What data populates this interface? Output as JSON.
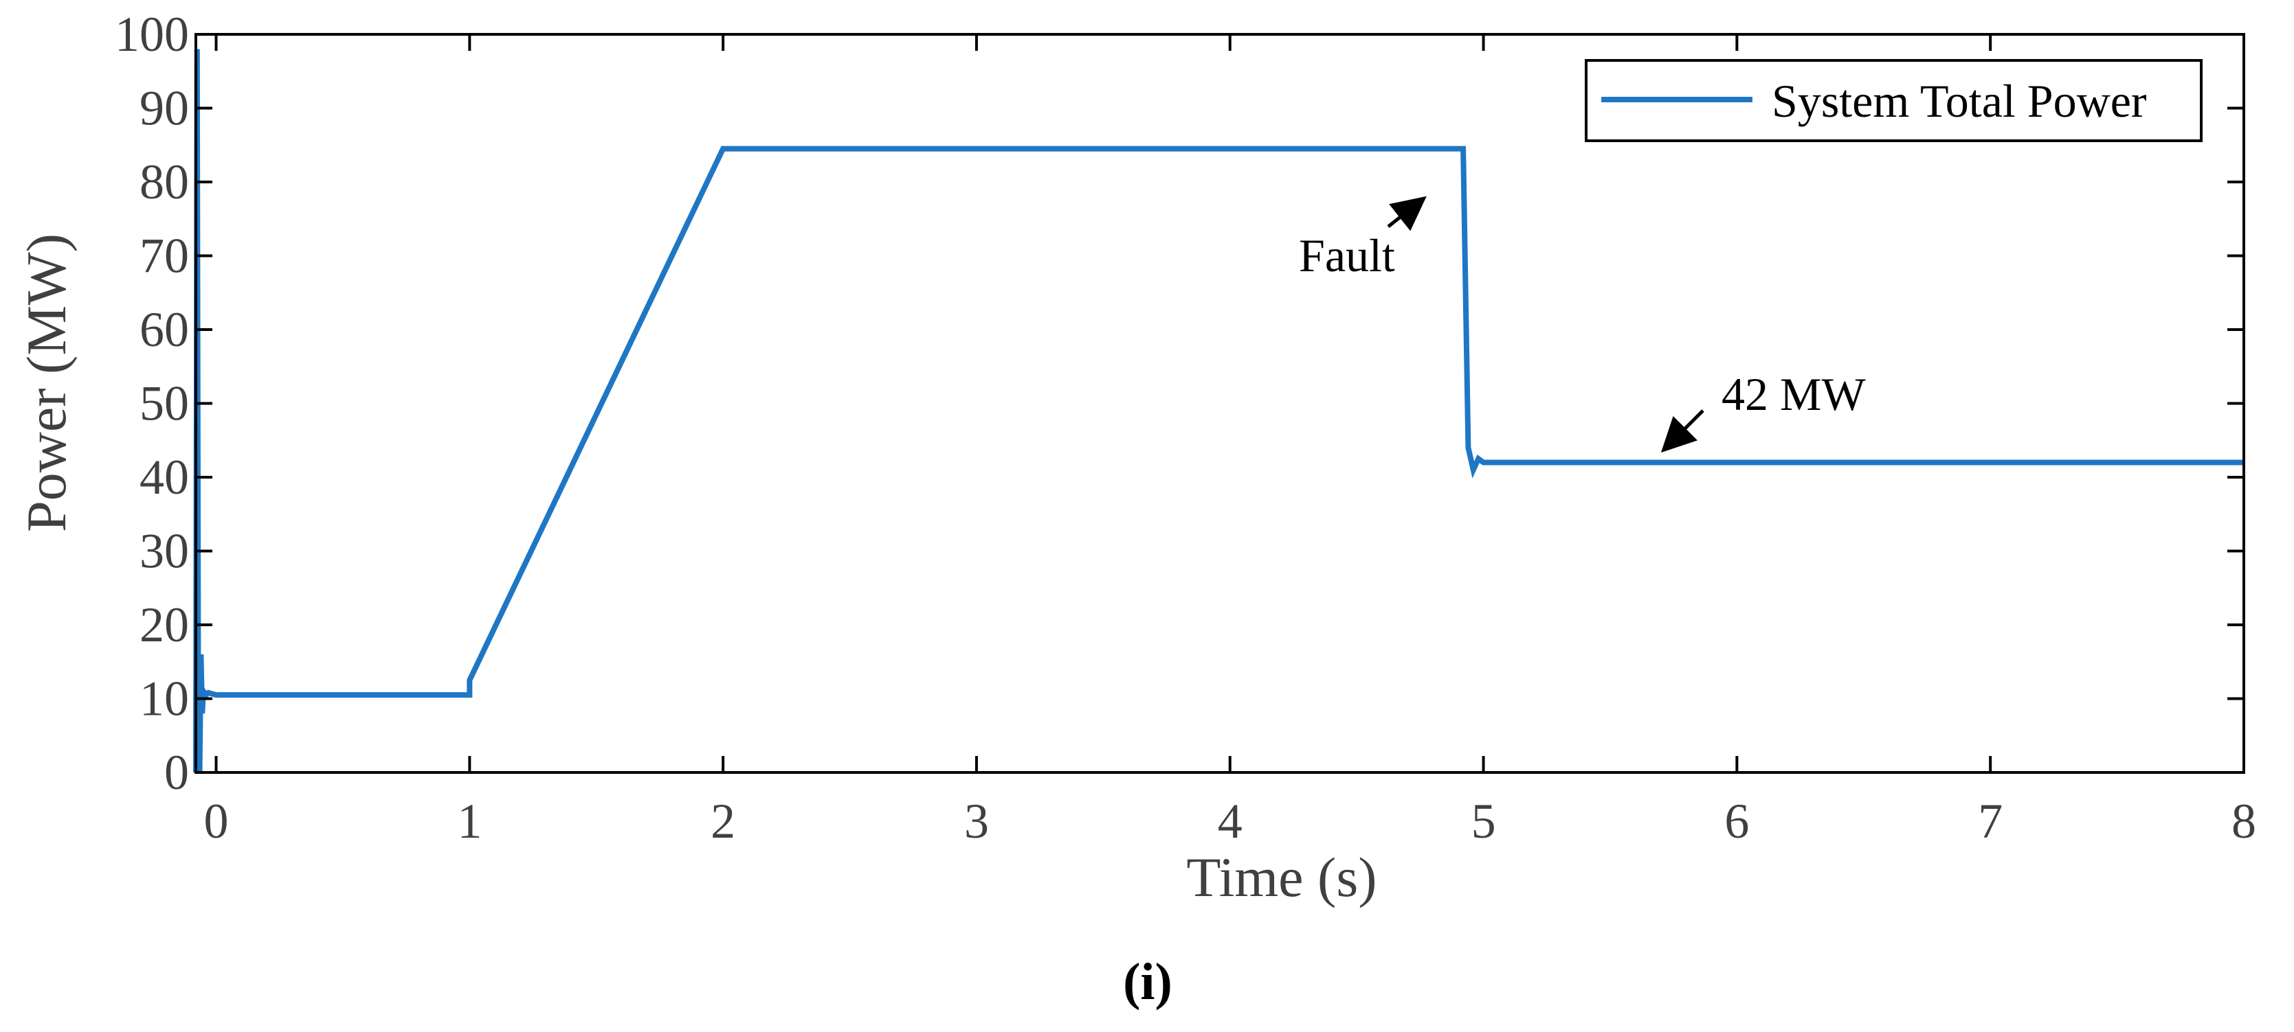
{
  "chart_data": {
    "type": "line",
    "title": "",
    "xlabel": "Time (s)",
    "ylabel": "Power (MW)",
    "xlim": [
      -0.08,
      8
    ],
    "ylim": [
      0,
      100
    ],
    "xticks": [
      0,
      1,
      2,
      3,
      4,
      5,
      6,
      7,
      8
    ],
    "yticks": [
      0,
      10,
      20,
      30,
      40,
      50,
      60,
      70,
      80,
      90,
      100
    ],
    "xtick_labels": [
      "0",
      "1",
      "2",
      "3",
      "4",
      "5",
      "6",
      "7",
      "8"
    ],
    "ytick_labels": [
      "0",
      "10",
      "20",
      "30",
      "40",
      "50",
      "60",
      "70",
      "80",
      "90",
      "100"
    ],
    "grid": false,
    "legend": {
      "position": "top-right",
      "entries": [
        "System Total Power"
      ]
    },
    "series": [
      {
        "name": "System Total Power",
        "color": "#1f77c4",
        "x": [
          -0.08,
          -0.075,
          -0.07,
          -0.065,
          -0.06,
          -0.055,
          -0.05,
          -0.04,
          -0.03,
          0.0,
          0.5,
          0.9,
          1.0,
          1.0,
          2.0,
          3.0,
          4.0,
          4.9,
          4.92,
          4.94,
          4.96,
          4.98,
          5.0,
          5.5,
          6.0,
          7.0,
          8.0
        ],
        "y": [
          0,
          98,
          2,
          0,
          16,
          8,
          11,
          10.5,
          10.8,
          10.5,
          10.5,
          10.5,
          10.5,
          12.5,
          84.5,
          84.5,
          84.5,
          84.5,
          84.5,
          44,
          41,
          42.5,
          42,
          42,
          42,
          42,
          42
        ]
      }
    ],
    "annotations": [
      {
        "text": "Fault",
        "x": 4.22,
        "y": 70,
        "arrow_to": [
          4.8,
          78.5
        ]
      },
      {
        "text": "42 MW",
        "x": 5.78,
        "y": 50,
        "arrow_to": [
          5.6,
          43.5
        ]
      }
    ]
  },
  "caption": "(i)"
}
